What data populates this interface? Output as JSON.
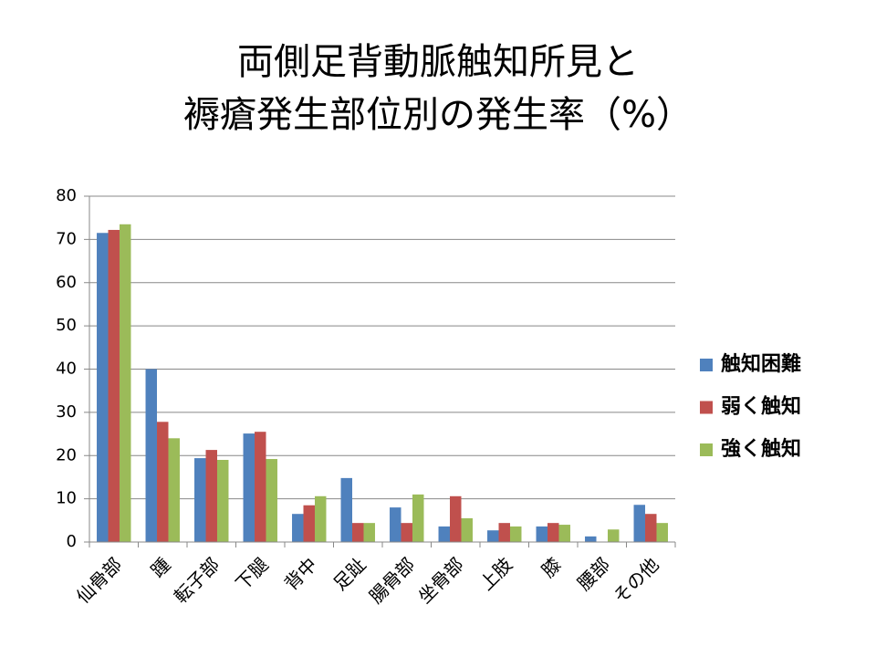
{
  "chart_data": {
    "type": "bar",
    "title": [
      "両側足背動脈触知所見と",
      "褥瘡発生部位別の発生率（%）"
    ],
    "categories": [
      "仙骨部",
      "踵",
      "転子部",
      "下腿",
      "背中",
      "足趾",
      "腸骨部",
      "坐骨部",
      "上肢",
      "膝",
      "腰部",
      "その他"
    ],
    "series": [
      {
        "name": "触知困難",
        "color": "#4f81bd",
        "values": [
          71.5,
          40,
          19.4,
          25.1,
          6.5,
          14.8,
          8,
          3.6,
          2.7,
          3.6,
          1.3,
          8.6
        ]
      },
      {
        "name": "弱く触知",
        "color": "#c0504d",
        "values": [
          72.2,
          27.8,
          21.3,
          25.5,
          8.5,
          4.4,
          4.4,
          10.6,
          4.4,
          4.4,
          0,
          6.5
        ]
      },
      {
        "name": "強く触知",
        "color": "#9bbb59",
        "values": [
          73.5,
          24,
          19,
          19.2,
          10.6,
          4.4,
          11,
          5.5,
          3.6,
          4,
          2.9,
          4.4
        ]
      }
    ],
    "ylim": [
      0,
      80
    ],
    "yticks": [
      0,
      10,
      20,
      30,
      40,
      50,
      60,
      70,
      80
    ],
    "grid": true,
    "legend": "right"
  }
}
